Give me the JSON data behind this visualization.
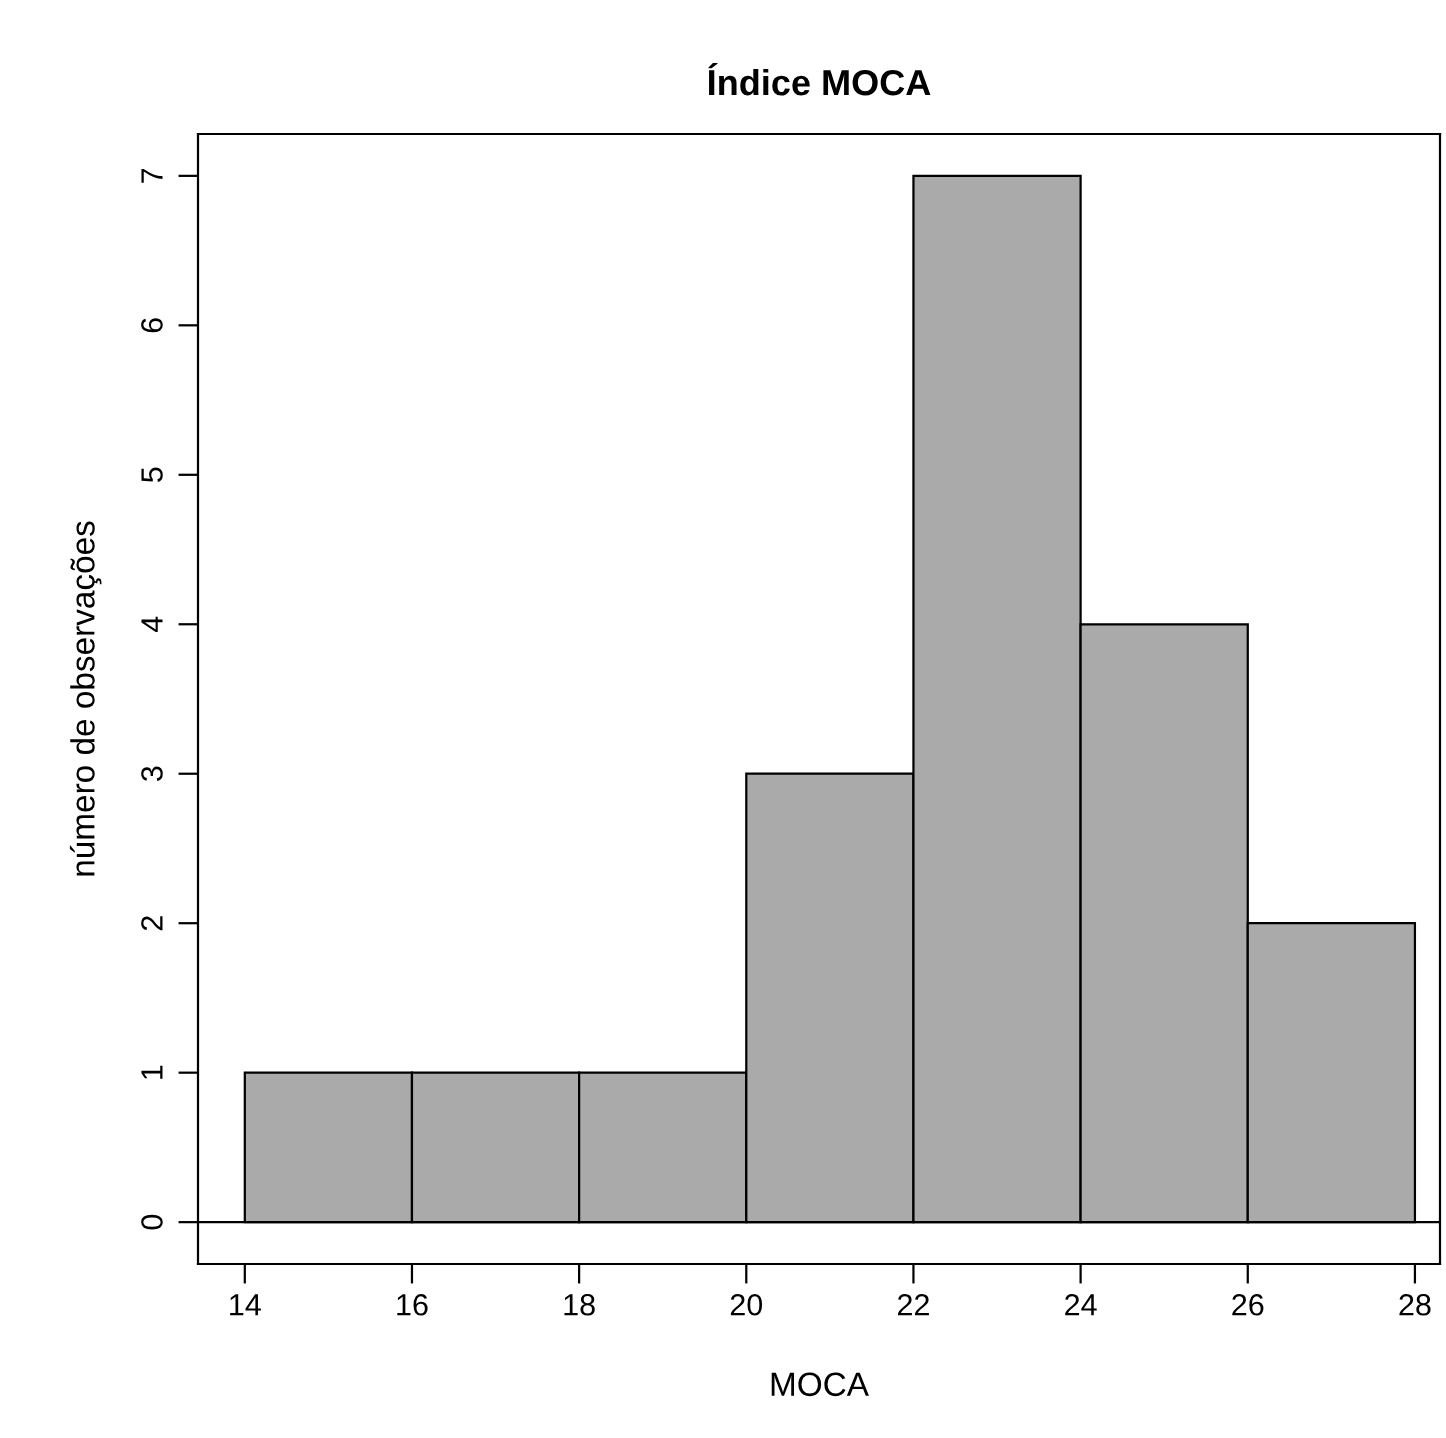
{
  "chart_data": {
    "type": "histogram",
    "title": "Índice MOCA",
    "xlabel": "MOCA",
    "ylabel": "número de observações",
    "bins": [
      14,
      16,
      18,
      20,
      22,
      24,
      26,
      28
    ],
    "values": [
      1,
      1,
      1,
      3,
      7,
      4,
      2
    ],
    "color": "#aaaaaa",
    "xlim": [
      13.44,
      28.3
    ],
    "xticks": [
      14,
      16,
      18,
      20,
      22,
      24,
      26,
      28
    ],
    "ylim": [
      -0.28,
      7.28
    ],
    "yticks": [
      0,
      1,
      2,
      3,
      4,
      5,
      6,
      7
    ],
    "ref_lines": [
      {
        "axis": "y",
        "value": 0,
        "color": "#000000"
      }
    ],
    "grid": false,
    "legend": false
  }
}
